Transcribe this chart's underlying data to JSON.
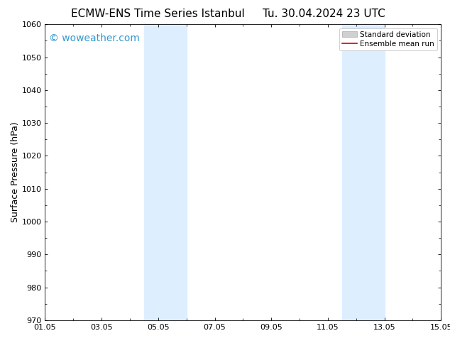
{
  "title_left": "ECMW-ENS Time Series Istanbul",
  "title_right": "Tu. 30.04.2024 23 UTC",
  "ylabel": "Surface Pressure (hPa)",
  "xlabel_ticks": [
    "01.05",
    "03.05",
    "05.05",
    "07.05",
    "09.05",
    "11.05",
    "13.05",
    "15.05"
  ],
  "xlim": [
    0,
    14
  ],
  "ylim": [
    970,
    1060
  ],
  "yticks": [
    970,
    980,
    990,
    1000,
    1010,
    1020,
    1030,
    1040,
    1050,
    1060
  ],
  "shaded_regions": [
    {
      "xmin": 3.5,
      "xmax": 5.0
    },
    {
      "xmin": 10.5,
      "xmax": 12.0
    }
  ],
  "shade_color": "#ddeeff",
  "watermark_text": "© woweather.com",
  "watermark_color": "#3399cc",
  "legend_std_label": "Standard deviation",
  "legend_mean_label": "Ensemble mean run",
  "std_patch_color": "#d0d0d0",
  "mean_line_color": "#cc0000",
  "background_color": "#ffffff",
  "title_fontsize": 11,
  "axis_label_fontsize": 9,
  "tick_fontsize": 8,
  "watermark_fontsize": 10,
  "legend_fontsize": 7.5
}
